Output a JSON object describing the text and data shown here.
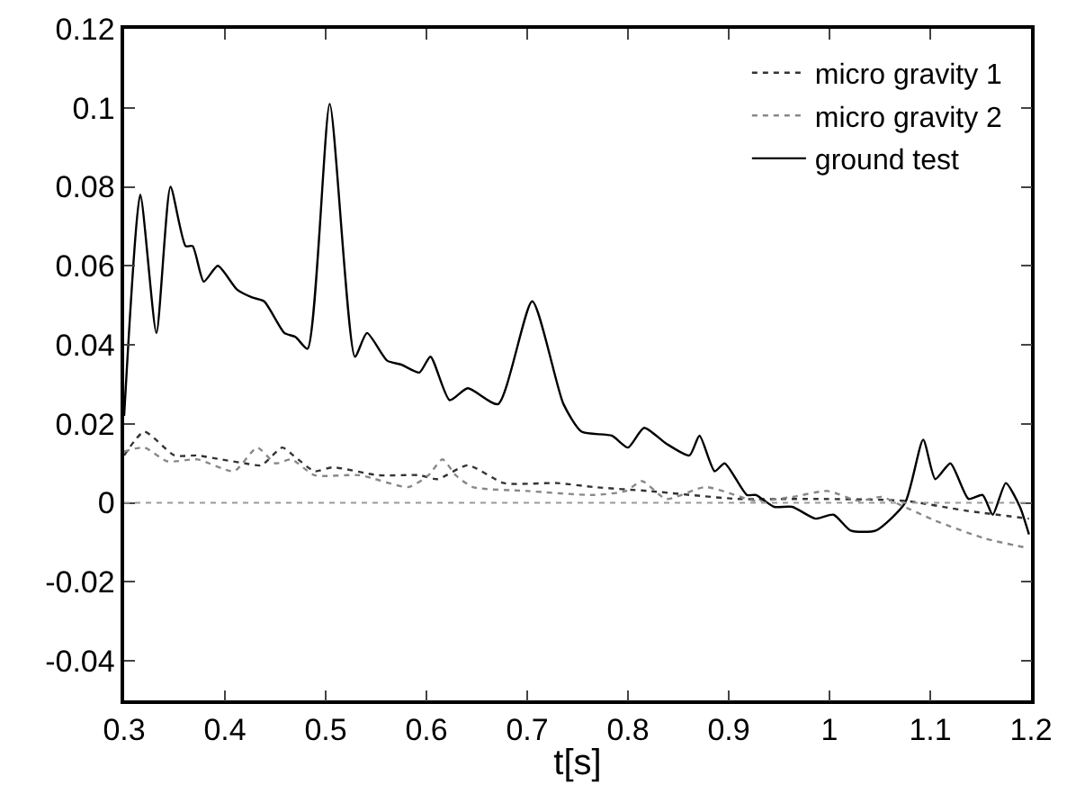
{
  "chart_data": {
    "type": "line",
    "xlabel": "t[s]",
    "xlim": [
      0.3,
      1.2
    ],
    "ylim": [
      -0.05,
      0.12
    ],
    "xticks": [
      0.3,
      0.4,
      0.5,
      0.6,
      0.7,
      0.8,
      0.9,
      1,
      1.1,
      1.2
    ],
    "yticks": [
      -0.04,
      -0.02,
      0,
      0.02,
      0.04,
      0.06,
      0.08,
      0.1,
      0.12
    ],
    "grid": false,
    "legend": "top right",
    "marker": "none",
    "ref_lines": [
      {
        "axis": "y",
        "value": 0,
        "color": "#999999",
        "line_style": "dotted"
      }
    ],
    "series": [
      {
        "name": "micro gravity 1",
        "color": "#333333",
        "line_style": "dotted",
        "x": [
          0.3,
          0.32,
          0.35,
          0.373,
          0.396,
          0.42,
          0.436,
          0.457,
          0.468,
          0.489,
          0.507,
          0.552,
          0.593,
          0.611,
          0.641,
          0.677,
          0.73,
          0.766,
          0.82,
          0.909,
          0.986,
          1.075,
          1.136,
          1.198
        ],
        "values": [
          0.012,
          0.018,
          0.012,
          0.012,
          0.011,
          0.01,
          0.0095,
          0.014,
          0.012,
          0.008,
          0.009,
          0.007,
          0.007,
          0.006,
          0.0095,
          0.005,
          0.005,
          0.004,
          0.003,
          0.001,
          0.001,
          0.0005,
          -0.002,
          -0.004
        ]
      },
      {
        "name": "micro gravity 2",
        "color": "#888888",
        "line_style": "dotted",
        "x": [
          0.3,
          0.32,
          0.343,
          0.373,
          0.409,
          0.432,
          0.45,
          0.466,
          0.489,
          0.534,
          0.582,
          0.602,
          0.616,
          0.629,
          0.646,
          0.7,
          0.766,
          0.798,
          0.814,
          0.838,
          0.877,
          0.927,
          0.963,
          0.998,
          1.029,
          1.052,
          1.07,
          1.105,
          1.154,
          1.198
        ],
        "values": [
          0.013,
          0.014,
          0.0105,
          0.011,
          0.008,
          0.014,
          0.01,
          0.011,
          0.007,
          0.007,
          0.004,
          0.007,
          0.011,
          0.007,
          0.004,
          0.003,
          0.002,
          0.003,
          0.0055,
          0.001,
          0.004,
          0.0005,
          0.0015,
          0.003,
          0.0005,
          0.0015,
          -0.0005,
          -0.0045,
          -0.009,
          -0.0115
        ]
      },
      {
        "name": "ground test",
        "color": "#000000",
        "line_style": "solid",
        "x": [
          0.3,
          0.316,
          0.332,
          0.346,
          0.361,
          0.368,
          0.379,
          0.393,
          0.412,
          0.427,
          0.439,
          0.459,
          0.47,
          0.482,
          0.504,
          0.529,
          0.541,
          0.561,
          0.575,
          0.593,
          0.604,
          0.623,
          0.641,
          0.671,
          0.705,
          0.736,
          0.754,
          0.784,
          0.8,
          0.816,
          0.838,
          0.861,
          0.871,
          0.886,
          0.896,
          0.918,
          0.927,
          0.945,
          0.963,
          0.986,
          1.004,
          1.021,
          1.046,
          1.075,
          1.093,
          1.105,
          1.12,
          1.138,
          1.152,
          1.162,
          1.175,
          1.189,
          1.198
        ],
        "values": [
          0.022,
          0.078,
          0.043,
          0.08,
          0.065,
          0.065,
          0.056,
          0.06,
          0.054,
          0.052,
          0.051,
          0.043,
          0.042,
          0.039,
          0.101,
          0.037,
          0.043,
          0.036,
          0.035,
          0.033,
          0.037,
          0.026,
          0.029,
          0.025,
          0.051,
          0.025,
          0.018,
          0.017,
          0.014,
          0.019,
          0.015,
          0.012,
          0.017,
          0.008,
          0.01,
          0.002,
          0.002,
          -0.001,
          -0.001,
          -0.004,
          -0.003,
          -0.007,
          -0.007,
          0.0,
          0.016,
          0.006,
          0.01,
          0.001,
          0.002,
          -0.003,
          0.005,
          -0.001,
          -0.008
        ]
      }
    ]
  }
}
